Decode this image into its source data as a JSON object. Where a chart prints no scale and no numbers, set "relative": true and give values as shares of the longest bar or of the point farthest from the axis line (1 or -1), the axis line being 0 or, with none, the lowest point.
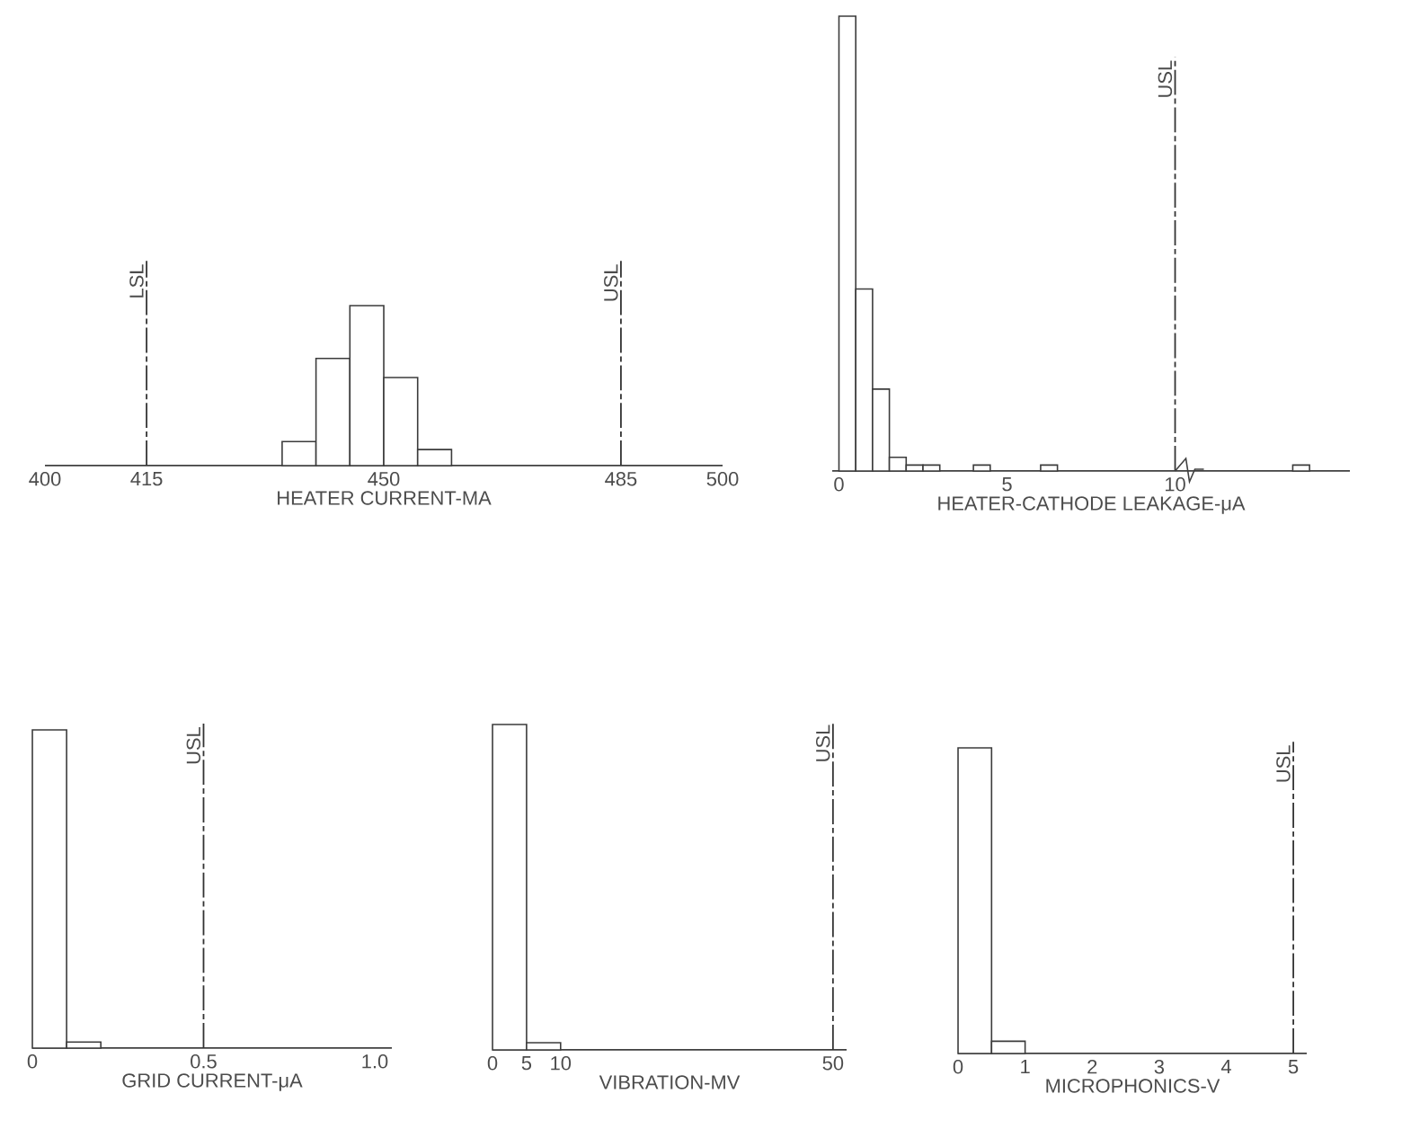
{
  "chart_data": [
    {
      "type": "bar",
      "xlabel": "HEATER CURRENT-MA",
      "relative": true,
      "color": "#3c3c3c",
      "x": [
        437.5,
        442.5,
        447.5,
        452.5,
        457.5
      ],
      "values": [
        0.15,
        0.67,
        1,
        0.55,
        0.1
      ],
      "xlim": [
        400,
        500
      ],
      "xticks": [
        400,
        415,
        450,
        485,
        500
      ],
      "ref_lines": [
        {
          "axis": "x",
          "value": 415,
          "label": "LSL",
          "line_style": "dashed"
        },
        {
          "axis": "x",
          "value": 485,
          "label": "USL",
          "line_style": "dashed"
        }
      ]
    },
    {
      "type": "bar",
      "xlabel": "HEATER-CATHODE LEAKAGE-μA",
      "relative": true,
      "color": "#3c3c3c",
      "x": [
        0.25,
        0.75,
        1.25,
        1.75,
        2.25,
        2.75,
        4.25,
        6.25,
        13.75
      ],
      "values": [
        1,
        0.4,
        0.18,
        0.03,
        0.013,
        0.013,
        0.013,
        0.013,
        0.013
      ],
      "xlim": [
        -0.2,
        15.2
      ],
      "xticks": [
        0,
        5,
        10
      ],
      "ref_lines": [
        {
          "axis": "x",
          "value": 10,
          "label": "USL",
          "line_style": "dashed"
        }
      ]
    },
    {
      "type": "bar",
      "xlabel": "GRID CURRENT-μA",
      "relative": true,
      "color": "#3c3c3c",
      "x": [
        0.05,
        0.15
      ],
      "values": [
        1,
        0.019
      ],
      "xlim": [
        0,
        1.05
      ],
      "xticks": [
        0,
        0.5,
        {
          "value": 1,
          "label": "1.0"
        }
      ],
      "ref_lines": [
        {
          "axis": "x",
          "value": 0.5,
          "label": "USL",
          "line_style": "dashed"
        }
      ]
    },
    {
      "type": "bar",
      "xlabel": "VIBRATION-MV",
      "relative": true,
      "color": "#3c3c3c",
      "x": [
        2.5,
        7.5
      ],
      "values": [
        1,
        0.022
      ],
      "xlim": [
        0,
        52
      ],
      "xticks": [
        0,
        5,
        10,
        50
      ],
      "ref_lines": [
        {
          "axis": "x",
          "value": 50,
          "label": "USL",
          "line_style": "dashed"
        }
      ]
    },
    {
      "type": "bar",
      "xlabel": "MICROPHONICS-V",
      "relative": true,
      "color": "#3c3c3c",
      "x": [
        0.25,
        0.75
      ],
      "values": [
        1,
        0.04
      ],
      "xlim": [
        0,
        5.2
      ],
      "xticks": [
        0,
        1,
        2,
        3,
        4,
        5
      ],
      "ref_lines": [
        {
          "axis": "x",
          "value": 5,
          "label": "USL",
          "line_style": "dashed"
        }
      ]
    }
  ]
}
